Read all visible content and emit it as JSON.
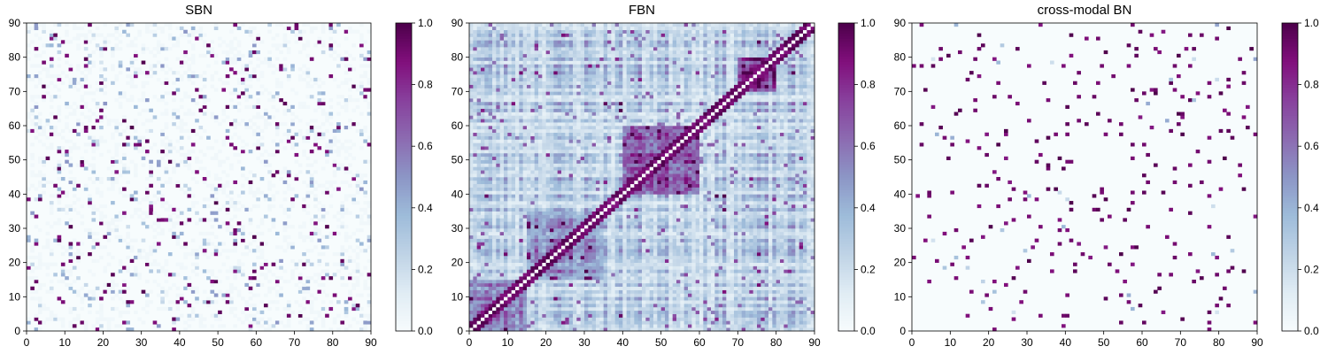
{
  "chart_data": [
    {
      "type": "heatmap",
      "title": "SBN",
      "matrix_size": 90,
      "xlim": [
        0,
        90
      ],
      "ylim": [
        0,
        90
      ],
      "xticks": [
        0,
        10,
        20,
        30,
        40,
        50,
        60,
        70,
        80,
        90
      ],
      "yticks": [
        0,
        10,
        20,
        30,
        40,
        50,
        60,
        70,
        80,
        90
      ],
      "colormap": "BuPu",
      "colorbar": {
        "range": [
          0.0,
          1.0
        ],
        "ticks": [
          "0.0",
          "0.2",
          "0.4",
          "0.6",
          "0.8",
          "1.0"
        ]
      },
      "description": "sparse structural network; mostly near 0 with scattered values near 1",
      "seed": 11,
      "density": 0.035,
      "mid_density": 0.05,
      "base_max": 0.04,
      "block_structure": false,
      "diagonal": 0.0
    },
    {
      "type": "heatmap",
      "title": "FBN",
      "matrix_size": 90,
      "xlim": [
        0,
        90
      ],
      "ylim": [
        0,
        90
      ],
      "xticks": [
        0,
        10,
        20,
        30,
        40,
        50,
        60,
        70,
        80,
        90
      ],
      "yticks": [
        0,
        10,
        20,
        30,
        40,
        50,
        60,
        70,
        80,
        90
      ],
      "colormap": "BuPu",
      "colorbar": {
        "range": [
          0.0,
          1.0
        ],
        "ticks": [
          "0.0",
          "0.2",
          "0.4",
          "0.6",
          "0.8",
          "1.0"
        ]
      },
      "description": "dense functional network with block structure; strong blocks near regions 40-60 and 70-80; white diagonal",
      "seed": 23,
      "density": 0.0,
      "mid_density": 0.0,
      "base_max": 0.0,
      "block_structure": true,
      "diagonal": 0.0
    },
    {
      "type": "heatmap",
      "title": "cross-modal BN",
      "matrix_size": 90,
      "xlim": [
        0,
        90
      ],
      "ylim": [
        0,
        90
      ],
      "xticks": [
        0,
        10,
        20,
        30,
        40,
        50,
        60,
        70,
        80,
        90
      ],
      "yticks": [
        0,
        10,
        20,
        30,
        40,
        50,
        60,
        70,
        80,
        90
      ],
      "colormap": "BuPu",
      "colorbar": {
        "range": [
          0.0,
          1.0
        ],
        "ticks": [
          "0.0",
          "0.2",
          "0.4",
          "0.6",
          "0.8",
          "1.0"
        ]
      },
      "description": "sparse binary-like network; mostly 0 with scattered 1s",
      "seed": 37,
      "density": 0.03,
      "mid_density": 0.004,
      "base_max": 0.015,
      "block_structure": false,
      "diagonal": 0.0
    }
  ],
  "colors": {
    "colormap_stops": [
      "#f7fcfd",
      "#e0ecf4",
      "#bfd3e6",
      "#9ebcda",
      "#8c96c6",
      "#8c6bb1",
      "#88419d",
      "#810f7c",
      "#4d004b"
    ]
  }
}
